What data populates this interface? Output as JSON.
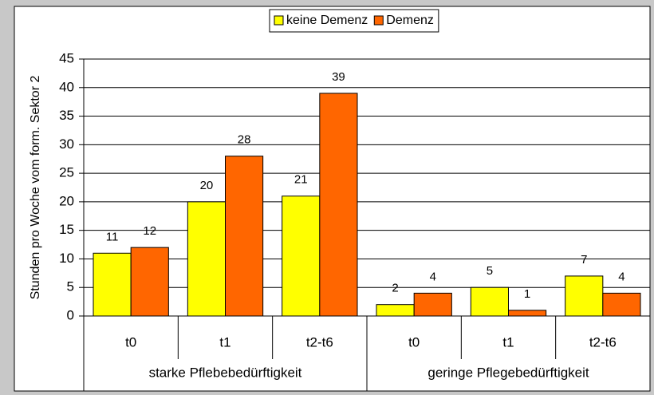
{
  "chart_data": {
    "type": "bar",
    "ylabel": "Stunden pro Woche vom form. Sektor 2",
    "categories": [
      "t0",
      "t1",
      "t2-t6",
      "t0",
      "t1",
      "t2-t6"
    ],
    "groups": [
      "starke Pflebebedürftigkeit",
      "geringe Pflegebedürftigkeit"
    ],
    "series": [
      {
        "name": "keine Demenz",
        "color": "#ffff00",
        "values": [
          11,
          20,
          21,
          2,
          5,
          7
        ]
      },
      {
        "name": "Demenz",
        "color": "#ff6600",
        "values": [
          12,
          28,
          39,
          4,
          1,
          4
        ]
      }
    ],
    "ylim": [
      0,
      45
    ],
    "yticks": [
      0,
      5,
      10,
      15,
      20,
      25,
      30,
      35,
      40,
      45
    ],
    "grid": true,
    "legend": "top"
  }
}
